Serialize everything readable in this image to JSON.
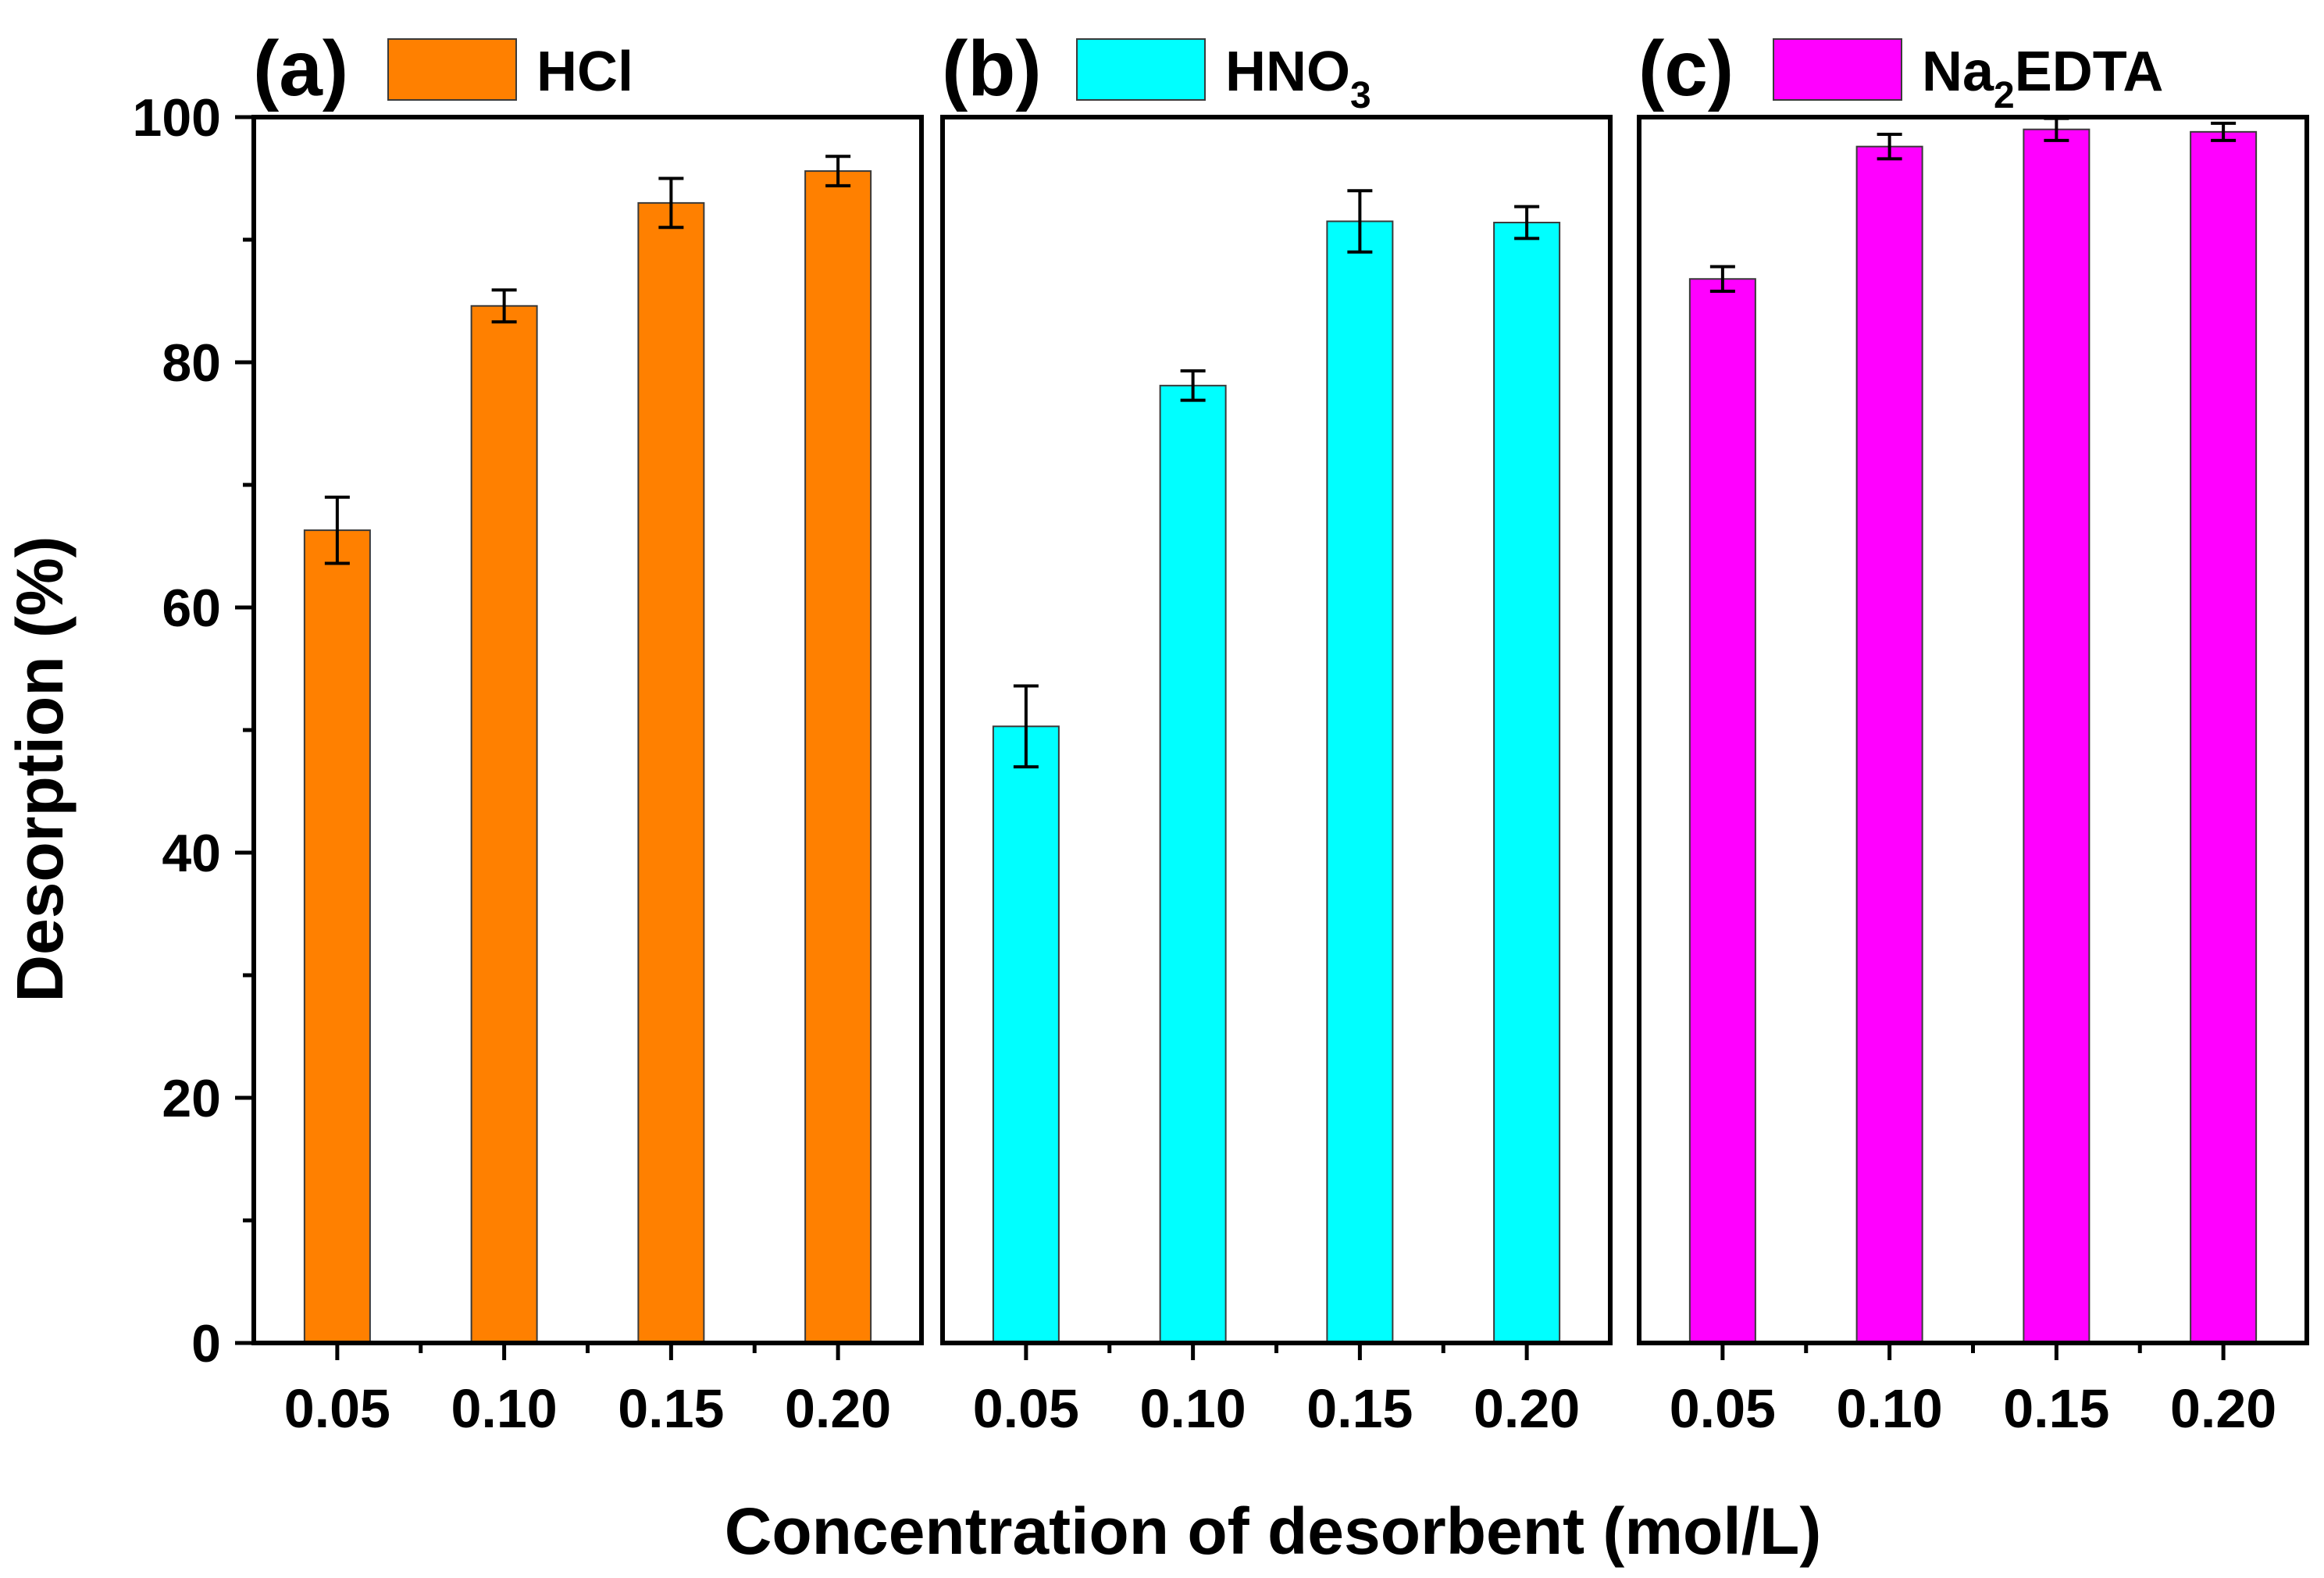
{
  "chart_data": {
    "type": "bar",
    "xlabel": "Concentration of desorbent (mol/L)",
    "ylabel": "Desorption (%)",
    "ylim": [
      0,
      100
    ],
    "yticks": [
      "0",
      "20",
      "40",
      "60",
      "80",
      "100"
    ],
    "ytick_values": [
      0,
      20,
      40,
      60,
      80,
      100
    ],
    "categories": [
      "0.05",
      "0.10",
      "0.15",
      "0.20"
    ],
    "panels": [
      {
        "tag": "(a)",
        "legend": {
          "main": "HCl",
          "sub": ""
        },
        "color": "#ff8000",
        "values": [
          66.3,
          84.6,
          93.0,
          95.6
        ],
        "errors": [
          2.7,
          1.3,
          2.0,
          1.2
        ]
      },
      {
        "tag": "(b)",
        "legend": {
          "main": "HNO",
          "sub": "3"
        },
        "color": "#00ffff",
        "values": [
          50.3,
          78.1,
          91.5,
          91.4
        ],
        "errors": [
          3.3,
          1.2,
          2.5,
          1.3
        ]
      },
      {
        "tag": "(c)",
        "legend": {
          "main": "Na",
          "sub": "2",
          "rest": "EDTA"
        },
        "color": "#ff00ff",
        "values": [
          86.8,
          97.6,
          99.0,
          98.8
        ],
        "errors": [
          1.0,
          1.0,
          0.9,
          0.7
        ]
      }
    ]
  }
}
